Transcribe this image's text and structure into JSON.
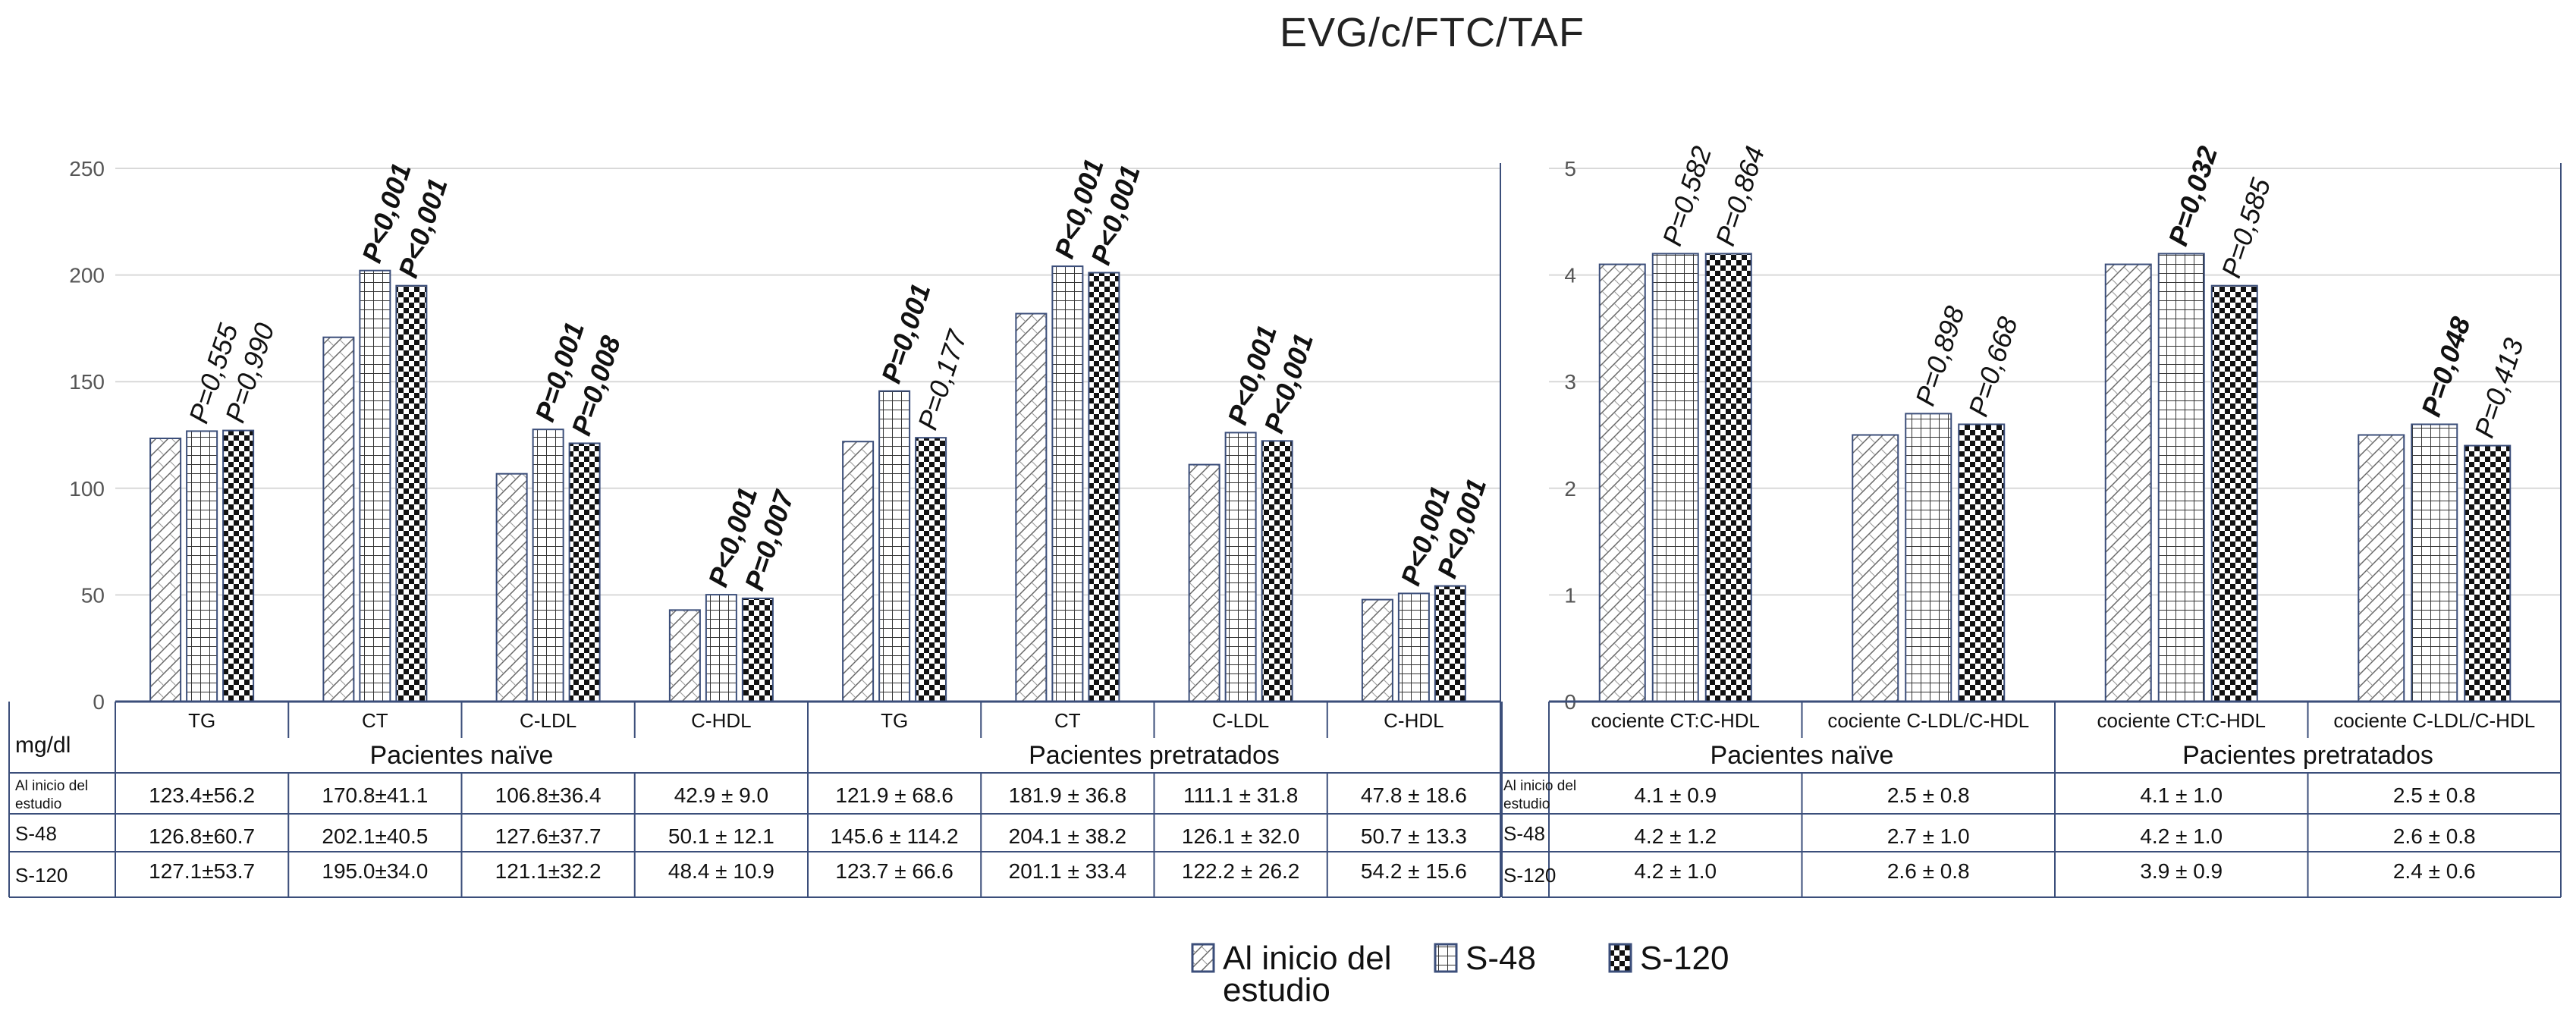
{
  "title": "EVG/c/FTC/TAF",
  "chart_data": [
    {
      "type": "bar",
      "unit_label": "mg/dl",
      "ylim": [
        0,
        250
      ],
      "yticks": [
        "0",
        "50",
        "100",
        "150",
        "200",
        "250"
      ],
      "grid": true,
      "groups": [
        "Pacientes naïve",
        "Pacientes  pretratados"
      ],
      "categories": [
        "TG",
        "CT",
        "C-LDL",
        "C-HDL",
        "TG",
        "CT",
        "C-LDL",
        "C-HDL"
      ],
      "series": [
        {
          "name": "Al inicio del estudio",
          "values": [
            123.4,
            170.8,
            106.8,
            42.9,
            121.9,
            181.9,
            111.1,
            47.8
          ]
        },
        {
          "name": "S-48",
          "values": [
            126.8,
            202.1,
            127.6,
            50.1,
            145.6,
            204.1,
            126.1,
            50.7
          ]
        },
        {
          "name": "S-120",
          "values": [
            127.1,
            195.0,
            121.1,
            48.4,
            123.7,
            201.1,
            122.2,
            54.2
          ]
        }
      ],
      "p_values": [
        {
          "s48": "P=0,555",
          "s48_bold": false,
          "s120": "P=0,990",
          "s120_bold": false
        },
        {
          "s48": "P<0,001",
          "s48_bold": true,
          "s120": "P<0,001",
          "s120_bold": true
        },
        {
          "s48": "P=0,001",
          "s48_bold": true,
          "s120": "P=0,008",
          "s120_bold": true
        },
        {
          "s48": "P<0,001",
          "s48_bold": true,
          "s120": "P=0,007",
          "s120_bold": true
        },
        {
          "s48": "P=0,001",
          "s48_bold": true,
          "s120": "P=0,177",
          "s120_bold": false
        },
        {
          "s48": "P<0,001",
          "s48_bold": true,
          "s120": "P<0,001",
          "s120_bold": true
        },
        {
          "s48": "P<0,001",
          "s48_bold": true,
          "s120": "P<0,001",
          "s120_bold": true
        },
        {
          "s48": "P<0,001",
          "s48_bold": true,
          "s120": "P<0,001",
          "s120_bold": true
        }
      ],
      "table": {
        "row_labels": [
          "Al inicio del estudio",
          "S-48",
          "S-120"
        ],
        "rows": [
          [
            "123.4±56.2",
            "170.8±41.1",
            "106.8±36.4",
            "42.9 ± 9.0",
            "121.9 ± 68.6",
            "181.9 ± 36.8",
            "111.1 ± 31.8",
            "47.8 ± 18.6"
          ],
          [
            "126.8±60.7",
            "202.1±40.5",
            "127.6±37.7",
            "50.1 ± 12.1",
            "145.6 ± 114.2",
            "204.1 ± 38.2",
            "126.1 ± 32.0",
            "50.7 ± 13.3"
          ],
          [
            "127.1±53.7",
            "195.0±34.0",
            "121.1±32.2",
            "48.4 ± 10.9",
            "123.7 ± 66.6",
            "201.1 ± 33.4",
            "122.2 ± 26.2",
            "54.2 ± 15.6"
          ]
        ]
      }
    },
    {
      "type": "bar",
      "ylim": [
        0,
        5
      ],
      "yticks": [
        "0",
        "1",
        "2",
        "3",
        "4",
        "5"
      ],
      "grid": true,
      "groups": [
        "Pacientes naïve",
        "Pacientes  pretratados"
      ],
      "categories": [
        "cociente CT:C-HDL",
        "cociente  C-LDL/C-HDL",
        "cociente CT:C-HDL",
        "cociente  C-LDL/C-HDL"
      ],
      "series": [
        {
          "name": "Al inicio del estudio",
          "values": [
            4.1,
            2.5,
            4.1,
            2.5
          ]
        },
        {
          "name": "S-48",
          "values": [
            4.2,
            2.7,
            4.2,
            2.6
          ]
        },
        {
          "name": "S-120",
          "values": [
            4.2,
            2.6,
            3.9,
            2.4
          ]
        }
      ],
      "p_values": [
        {
          "s48": "P=0,582",
          "s48_bold": false,
          "s120": "P=0,864",
          "s120_bold": false
        },
        {
          "s48": "P=0,898",
          "s48_bold": false,
          "s120": "P=0,668",
          "s120_bold": false
        },
        {
          "s48": "P=0,032",
          "s48_bold": true,
          "s120": "P=0,585",
          "s120_bold": false
        },
        {
          "s48": "P=0,048",
          "s48_bold": true,
          "s120": "P=0,413",
          "s120_bold": false
        }
      ],
      "table": {
        "row_labels": [
          "Al inicio del estudio",
          "S-48",
          "S-120"
        ],
        "rows": [
          [
            "4.1 ± 0.9",
            "2.5 ± 0.8",
            "4.1 ± 1.0",
            "2.5 ± 0.8"
          ],
          [
            "4.2 ± 1.2",
            "2.7 ± 1.0",
            "4.2 ± 1.0",
            "2.6 ± 0.8"
          ],
          [
            "4.2 ± 1.0",
            "2.6 ± 0.8",
            "3.9 ± 0.9",
            "2.4 ± 0.6"
          ]
        ]
      }
    }
  ],
  "legend": [
    {
      "label_line1": "Al inicio del",
      "label_line2": "estudio",
      "pattern": "diag"
    },
    {
      "label_line1": "S-48",
      "label_line2": "",
      "pattern": "grid"
    },
    {
      "label_line1": "S-120",
      "label_line2": "",
      "pattern": "check"
    }
  ]
}
